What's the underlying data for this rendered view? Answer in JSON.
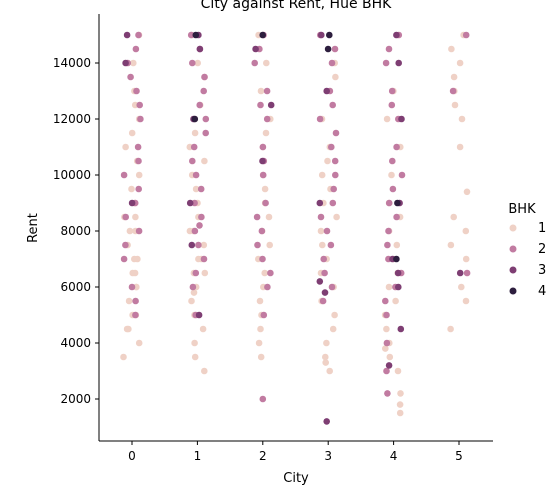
{
  "chart_data": {
    "type": "scatter",
    "title": "City against Rent, Hue BHK",
    "xlabel": "City",
    "ylabel": "Rent",
    "categories": [
      0,
      1,
      2,
      3,
      4,
      5
    ],
    "y_ticks": [
      2000,
      4000,
      6000,
      8000,
      10000,
      12000,
      14000
    ],
    "ylim": [
      500,
      15750
    ],
    "grid": false,
    "legend": {
      "title": "BHK",
      "position": "right",
      "entries": [
        "1",
        "2",
        "3",
        "4"
      ]
    },
    "series": [
      {
        "name": "1",
        "color": "#efd1c6",
        "points": [
          [
            0,
            3500
          ],
          [
            0,
            4000
          ],
          [
            0,
            4500
          ],
          [
            0,
            4500
          ],
          [
            0,
            5000
          ],
          [
            0,
            5000
          ],
          [
            0,
            5500
          ],
          [
            0,
            6000
          ],
          [
            0,
            6000
          ],
          [
            0,
            6500
          ],
          [
            0,
            6500
          ],
          [
            0,
            7000
          ],
          [
            0,
            7000
          ],
          [
            0,
            7500
          ],
          [
            0,
            8000
          ],
          [
            0,
            8000
          ],
          [
            0,
            8500
          ],
          [
            0,
            8500
          ],
          [
            0,
            9000
          ],
          [
            0,
            9500
          ],
          [
            0,
            10000
          ],
          [
            0,
            10500
          ],
          [
            0,
            11000
          ],
          [
            0,
            11500
          ],
          [
            0,
            12000
          ],
          [
            0,
            12500
          ],
          [
            0,
            13000
          ],
          [
            0,
            14000
          ],
          [
            0,
            15000
          ],
          [
            1,
            3000
          ],
          [
            1,
            3500
          ],
          [
            1,
            4000
          ],
          [
            1,
            4500
          ],
          [
            1,
            5000
          ],
          [
            1,
            5500
          ],
          [
            1,
            5800
          ],
          [
            1,
            6000
          ],
          [
            1,
            6500
          ],
          [
            1,
            6500
          ],
          [
            1,
            7000
          ],
          [
            1,
            7000
          ],
          [
            1,
            7500
          ],
          [
            1,
            8000
          ],
          [
            1,
            8000
          ],
          [
            1,
            8500
          ],
          [
            1,
            9000
          ],
          [
            1,
            9500
          ],
          [
            1,
            10000
          ],
          [
            1,
            10500
          ],
          [
            1,
            11000
          ],
          [
            1,
            11500
          ],
          [
            1,
            12000
          ],
          [
            1,
            12500
          ],
          [
            1,
            13500
          ],
          [
            1,
            14000
          ],
          [
            1,
            15000
          ],
          [
            2,
            3500
          ],
          [
            2,
            4000
          ],
          [
            2,
            4500
          ],
          [
            2,
            5000
          ],
          [
            2,
            5500
          ],
          [
            2,
            6000
          ],
          [
            2,
            6500
          ],
          [
            2,
            7000
          ],
          [
            2,
            7500
          ],
          [
            2,
            8000
          ],
          [
            2,
            8500
          ],
          [
            2,
            9000
          ],
          [
            2,
            9500
          ],
          [
            2,
            10000
          ],
          [
            2,
            11000
          ],
          [
            2,
            11500
          ],
          [
            2,
            12000
          ],
          [
            2,
            13000
          ],
          [
            2,
            14000
          ],
          [
            2,
            15000
          ],
          [
            3,
            3000
          ],
          [
            3,
            3300
          ],
          [
            3,
            3500
          ],
          [
            3,
            4000
          ],
          [
            3,
            4500
          ],
          [
            3,
            5000
          ],
          [
            3,
            5500
          ],
          [
            3,
            6000
          ],
          [
            3,
            6500
          ],
          [
            3,
            7000
          ],
          [
            3,
            7500
          ],
          [
            3,
            8000
          ],
          [
            3,
            8500
          ],
          [
            3,
            9000
          ],
          [
            3,
            9500
          ],
          [
            3,
            10000
          ],
          [
            3,
            10500
          ],
          [
            3,
            11000
          ],
          [
            3,
            12000
          ],
          [
            3,
            13500
          ],
          [
            3,
            14000
          ],
          [
            4,
            1500
          ],
          [
            4,
            1800
          ],
          [
            4,
            2200
          ],
          [
            4,
            3000
          ],
          [
            4,
            3500
          ],
          [
            4,
            3800
          ],
          [
            4,
            4000
          ],
          [
            4,
            4500
          ],
          [
            4,
            5000
          ],
          [
            4,
            5500
          ],
          [
            4,
            6000
          ],
          [
            4,
            6500
          ],
          [
            4,
            7000
          ],
          [
            4,
            7500
          ],
          [
            4,
            8000
          ],
          [
            4,
            8500
          ],
          [
            4,
            9000
          ],
          [
            4,
            10000
          ],
          [
            4,
            11000
          ],
          [
            4,
            12000
          ],
          [
            4,
            13000
          ],
          [
            5,
            4500
          ],
          [
            5,
            5500
          ],
          [
            5,
            6000
          ],
          [
            5,
            7000
          ],
          [
            5,
            7500
          ],
          [
            5,
            8000
          ],
          [
            5,
            8500
          ],
          [
            5,
            9400
          ],
          [
            5,
            11000
          ],
          [
            5,
            12000
          ],
          [
            5,
            12500
          ],
          [
            5,
            13000
          ],
          [
            5,
            13500
          ],
          [
            5,
            14000
          ],
          [
            5,
            14500
          ],
          [
            5,
            15000
          ]
        ]
      },
      {
        "name": "2",
        "color": "#c17ba1",
        "points": [
          [
            0,
            5000
          ],
          [
            0,
            5500
          ],
          [
            0,
            6000
          ],
          [
            0,
            7000
          ],
          [
            0,
            7500
          ],
          [
            0,
            8000
          ],
          [
            0,
            8500
          ],
          [
            0,
            9000
          ],
          [
            0,
            9500
          ],
          [
            0,
            10000
          ],
          [
            0,
            10500
          ],
          [
            0,
            11000
          ],
          [
            0,
            12000
          ],
          [
            0,
            12500
          ],
          [
            0,
            13000
          ],
          [
            0,
            13500
          ],
          [
            0,
            14000
          ],
          [
            0,
            14500
          ],
          [
            0,
            15000
          ],
          [
            1,
            5000
          ],
          [
            1,
            6000
          ],
          [
            1,
            6500
          ],
          [
            1,
            7000
          ],
          [
            1,
            7500
          ],
          [
            1,
            8000
          ],
          [
            1,
            8200
          ],
          [
            1,
            8500
          ],
          [
            1,
            9000
          ],
          [
            1,
            9500
          ],
          [
            1,
            10000
          ],
          [
            1,
            10500
          ],
          [
            1,
            11000
          ],
          [
            1,
            11500
          ],
          [
            1,
            12000
          ],
          [
            1,
            12500
          ],
          [
            1,
            13000
          ],
          [
            1,
            13500
          ],
          [
            1,
            14000
          ],
          [
            1,
            14500
          ],
          [
            1,
            15000
          ],
          [
            2,
            2000
          ],
          [
            2,
            5000
          ],
          [
            2,
            6000
          ],
          [
            2,
            6500
          ],
          [
            2,
            7000
          ],
          [
            2,
            7500
          ],
          [
            2,
            8000
          ],
          [
            2,
            8500
          ],
          [
            2,
            9000
          ],
          [
            2,
            10000
          ],
          [
            2,
            10500
          ],
          [
            2,
            11000
          ],
          [
            2,
            12000
          ],
          [
            2,
            12500
          ],
          [
            2,
            13000
          ],
          [
            2,
            14000
          ],
          [
            2,
            14500
          ],
          [
            2,
            15000
          ],
          [
            3,
            5500
          ],
          [
            3,
            6000
          ],
          [
            3,
            6500
          ],
          [
            3,
            7000
          ],
          [
            3,
            7500
          ],
          [
            3,
            8000
          ],
          [
            3,
            8500
          ],
          [
            3,
            9000
          ],
          [
            3,
            9500
          ],
          [
            3,
            10000
          ],
          [
            3,
            10500
          ],
          [
            3,
            11000
          ],
          [
            3,
            11500
          ],
          [
            3,
            12000
          ],
          [
            3,
            12500
          ],
          [
            3,
            13000
          ],
          [
            3,
            14000
          ],
          [
            3,
            14500
          ],
          [
            3,
            15000
          ],
          [
            4,
            2200
          ],
          [
            4,
            3000
          ],
          [
            4,
            4000
          ],
          [
            4,
            5000
          ],
          [
            4,
            5500
          ],
          [
            4,
            6000
          ],
          [
            4,
            6500
          ],
          [
            4,
            7000
          ],
          [
            4,
            7500
          ],
          [
            4,
            8000
          ],
          [
            4,
            8500
          ],
          [
            4,
            9000
          ],
          [
            4,
            9500
          ],
          [
            4,
            10000
          ],
          [
            4,
            10500
          ],
          [
            4,
            11000
          ],
          [
            4,
            12000
          ],
          [
            4,
            12500
          ],
          [
            4,
            13000
          ],
          [
            4,
            14000
          ],
          [
            4,
            14500
          ],
          [
            4,
            15000
          ],
          [
            5,
            6500
          ],
          [
            5,
            13000
          ],
          [
            5,
            15000
          ]
        ]
      },
      {
        "name": "3",
        "color": "#7e3e73",
        "points": [
          [
            0,
            9000
          ],
          [
            0,
            14000
          ],
          [
            0,
            15000
          ],
          [
            1,
            5000
          ],
          [
            1,
            7500
          ],
          [
            1,
            9000
          ],
          [
            1,
            12000
          ],
          [
            1,
            14500
          ],
          [
            1,
            15000
          ],
          [
            2,
            10500
          ],
          [
            2,
            12500
          ],
          [
            2,
            14500
          ],
          [
            3,
            1200
          ],
          [
            3,
            5800
          ],
          [
            3,
            6200
          ],
          [
            3,
            9000
          ],
          [
            3,
            13000
          ],
          [
            3,
            15000
          ],
          [
            4,
            3200
          ],
          [
            4,
            4500
          ],
          [
            4,
            6000
          ],
          [
            4,
            6500
          ],
          [
            4,
            7000
          ],
          [
            4,
            9000
          ],
          [
            4,
            12000
          ],
          [
            4,
            14000
          ],
          [
            4,
            15000
          ],
          [
            5,
            6500
          ]
        ]
      },
      {
        "name": "4",
        "color": "#2d1e3e",
        "points": [
          [
            1,
            12000
          ],
          [
            1,
            15000
          ],
          [
            2,
            15000
          ],
          [
            3,
            14500
          ],
          [
            3,
            15000
          ],
          [
            4,
            9000
          ],
          [
            4,
            7000
          ]
        ]
      }
    ]
  }
}
